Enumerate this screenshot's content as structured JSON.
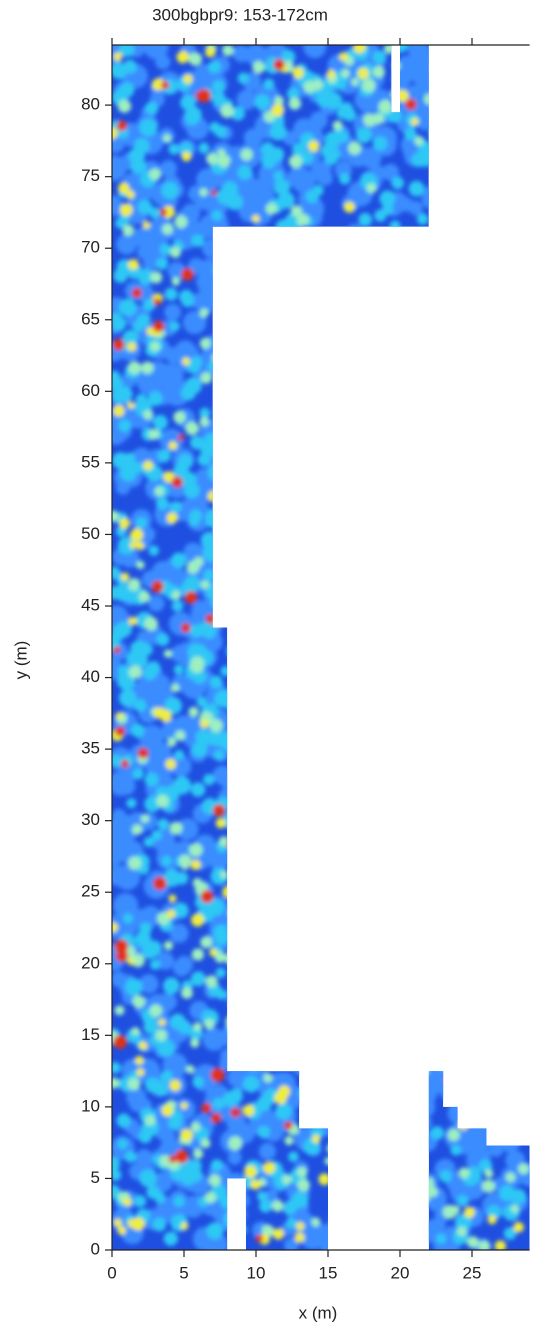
{
  "chart_data": {
    "type": "map",
    "title": "300bgbpr9: 153-172cm",
    "x_label": "x (m)",
    "y_label": "y (m)",
    "xlim": [
      0,
      29
    ],
    "ylim": [
      0,
      84.2
    ],
    "xticks": [
      0,
      5,
      10,
      15,
      20,
      25
    ],
    "yticks": [
      0,
      5,
      10,
      15,
      20,
      25,
      30,
      35,
      40,
      45,
      50,
      55,
      60,
      65,
      70,
      75,
      80
    ]
  }
}
